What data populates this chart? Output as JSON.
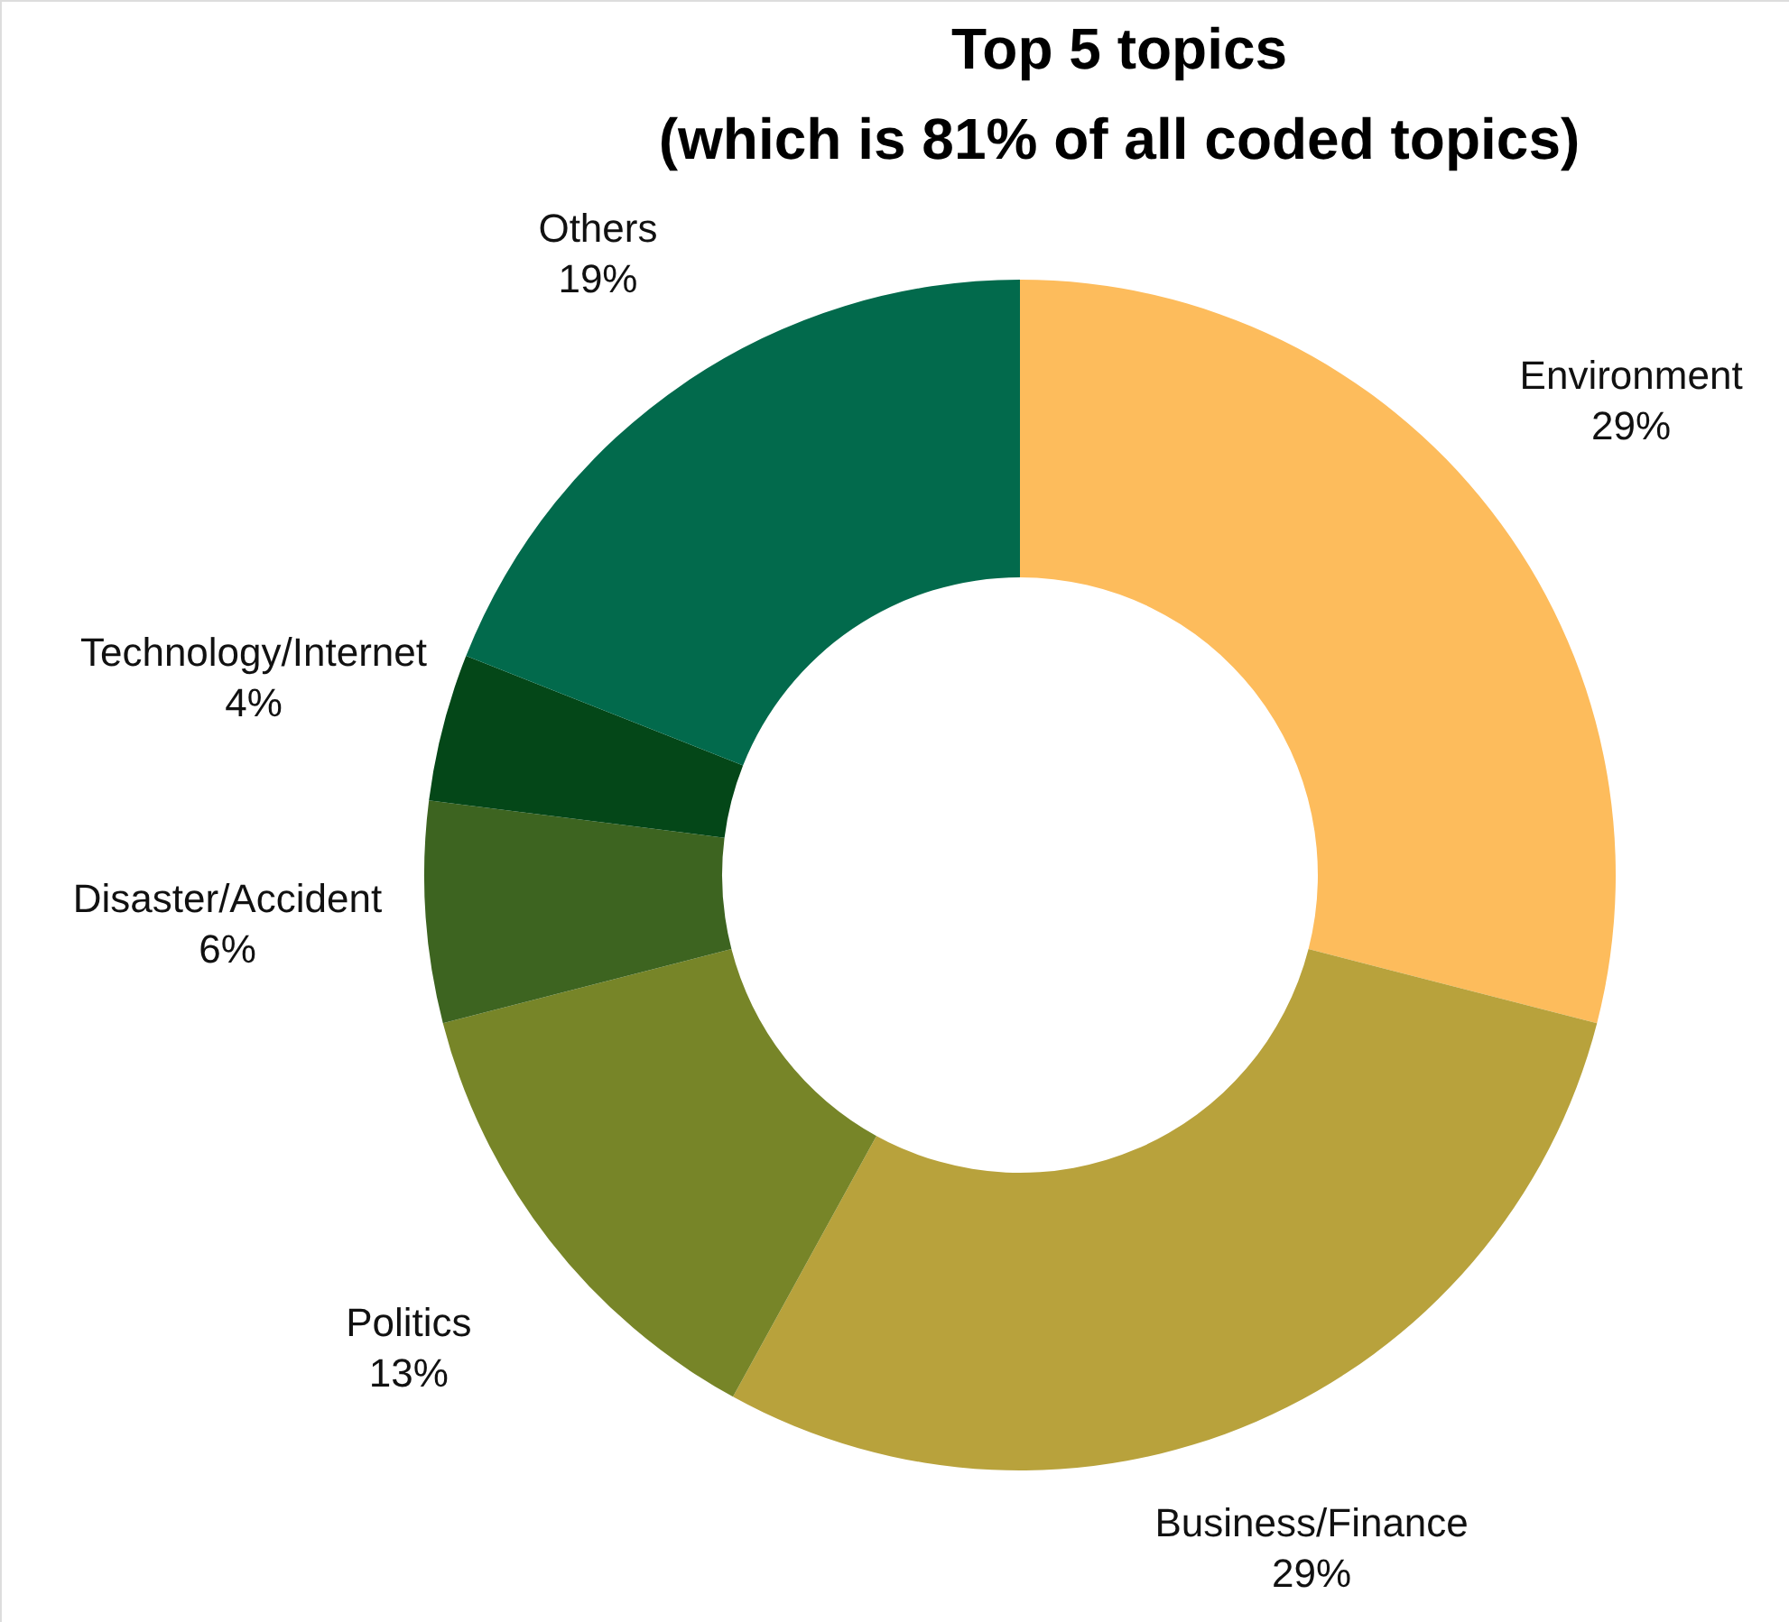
{
  "chart_data": {
    "type": "donut",
    "title": "Top 5 topics\n(which is 81% of all coded topics)",
    "categories": [
      "Environment",
      "Business/Finance",
      "Politics",
      "Disaster/Accident",
      "Technology/Internet",
      "Others"
    ],
    "values": [
      29,
      29,
      13,
      6,
      4,
      19
    ],
    "value_labels": [
      "29%",
      "29%",
      "13%",
      "6%",
      "4%",
      "19%"
    ],
    "colors": [
      "#fdbc5c",
      "#b8a23c",
      "#778528",
      "#3d6420",
      "#044718",
      "#026a4c"
    ]
  }
}
